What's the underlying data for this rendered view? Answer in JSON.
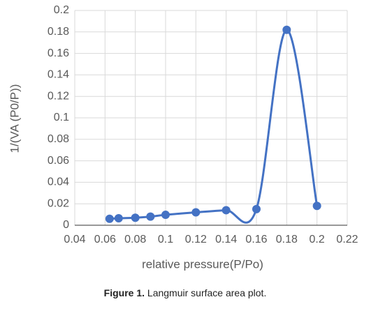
{
  "chart_data": {
    "type": "scatter",
    "y_label": "1/(VA (P0/P))",
    "x_label": "relative pressure(P/Po)",
    "series": [
      {
        "color": "#4472c4",
        "x": [
          0.063,
          0.069,
          0.08,
          0.09,
          0.1,
          0.12,
          0.14,
          0.16,
          0.18,
          0.2
        ],
        "values": [
          0.006,
          0.0065,
          0.007,
          0.008,
          0.0097,
          0.012,
          0.014,
          0.015,
          0.182,
          0.018
        ]
      }
    ],
    "xlim": [
      0.04,
      0.22
    ],
    "xticks": [
      0.04,
      0.06,
      0.08,
      0.1,
      0.12,
      0.14,
      0.16,
      0.18,
      0.2,
      0.22
    ],
    "ylim": [
      0,
      0.2
    ],
    "yticks": [
      0,
      0.02,
      0.04,
      0.06,
      0.08,
      0.1,
      0.12,
      0.14,
      0.16,
      0.18,
      0.2
    ],
    "grid": true,
    "smooth": true
  },
  "caption": {
    "label": "Figure 1.",
    "text": "Langmuir surface area plot."
  }
}
